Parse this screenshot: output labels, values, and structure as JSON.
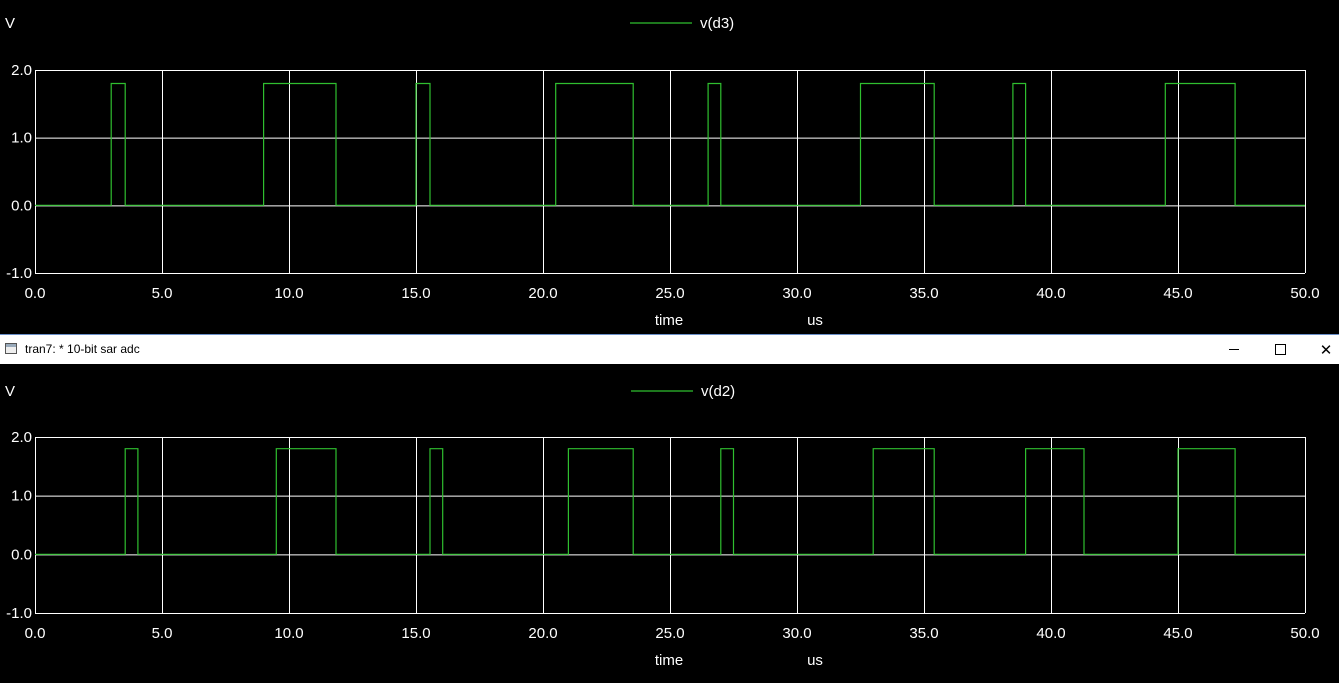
{
  "window": {
    "title": "tran7: * 10-bit sar adc",
    "icon": "app-window-icon",
    "controls": {
      "minimize_icon": "minimize-icon",
      "maximize_icon": "maximize-icon",
      "close_icon": "close-icon"
    }
  },
  "colors": {
    "background": "#000000",
    "grid": "#ffffff",
    "trace": "#2fbf2f",
    "axis_text": "#ffffff"
  },
  "chart_data": [
    {
      "type": "line",
      "ylabel": "V",
      "xlabel": "time",
      "xunit": "us",
      "xlim": [
        0,
        50
      ],
      "ylim": [
        -1,
        2
      ],
      "x_ticks": [
        "0.0",
        "5.0",
        "10.0",
        "15.0",
        "20.0",
        "25.0",
        "30.0",
        "35.0",
        "40.0",
        "45.0",
        "50.0"
      ],
      "y_ticks": [
        "2.0",
        "1.0",
        "0.0",
        "-1.0"
      ],
      "grid": true,
      "legend": "top-center",
      "series": [
        {
          "name": "v(d3)",
          "x": [
            0,
            3.0,
            3.0,
            3.55,
            3.55,
            9.0,
            9.0,
            11.85,
            11.85,
            15.0,
            15.0,
            15.55,
            15.55,
            20.5,
            20.5,
            23.55,
            23.55,
            26.5,
            26.5,
            27.0,
            27.0,
            32.5,
            32.5,
            35.4,
            35.4,
            38.5,
            38.5,
            39.0,
            39.0,
            44.5,
            44.5,
            47.25,
            47.25,
            50
          ],
          "y": [
            0,
            0,
            1.8,
            1.8,
            0,
            0,
            1.8,
            1.8,
            0,
            0,
            1.8,
            1.8,
            0,
            0,
            1.8,
            1.8,
            0,
            0,
            1.8,
            1.8,
            0,
            0,
            1.8,
            1.8,
            0,
            0,
            1.8,
            1.8,
            0,
            0,
            1.8,
            1.8,
            0,
            0
          ]
        }
      ]
    },
    {
      "type": "line",
      "ylabel": "V",
      "xlabel": "time",
      "xunit": "us",
      "xlim": [
        0,
        50
      ],
      "ylim": [
        -1,
        2
      ],
      "x_ticks": [
        "0.0",
        "5.0",
        "10.0",
        "15.0",
        "20.0",
        "25.0",
        "30.0",
        "35.0",
        "40.0",
        "45.0",
        "50.0"
      ],
      "y_ticks": [
        "2.0",
        "1.0",
        "0.0",
        "-1.0"
      ],
      "grid": true,
      "legend": "top-center",
      "series": [
        {
          "name": "v(d2)",
          "x": [
            0,
            3.55,
            3.55,
            4.05,
            4.05,
            9.5,
            9.5,
            11.85,
            11.85,
            15.55,
            15.55,
            16.05,
            16.05,
            21.0,
            21.0,
            23.55,
            23.55,
            27.0,
            27.0,
            27.5,
            27.5,
            33.0,
            33.0,
            35.4,
            35.4,
            39.0,
            39.0,
            41.3,
            41.3,
            45.0,
            45.0,
            47.25,
            47.25,
            50
          ],
          "y": [
            0,
            0,
            1.8,
            1.8,
            0,
            0,
            1.8,
            1.8,
            0,
            0,
            1.8,
            1.8,
            0,
            0,
            1.8,
            1.8,
            0,
            0,
            1.8,
            1.8,
            0,
            0,
            1.8,
            1.8,
            0,
            0,
            1.8,
            1.8,
            0,
            0,
            1.8,
            1.8,
            0,
            0
          ]
        }
      ]
    }
  ]
}
